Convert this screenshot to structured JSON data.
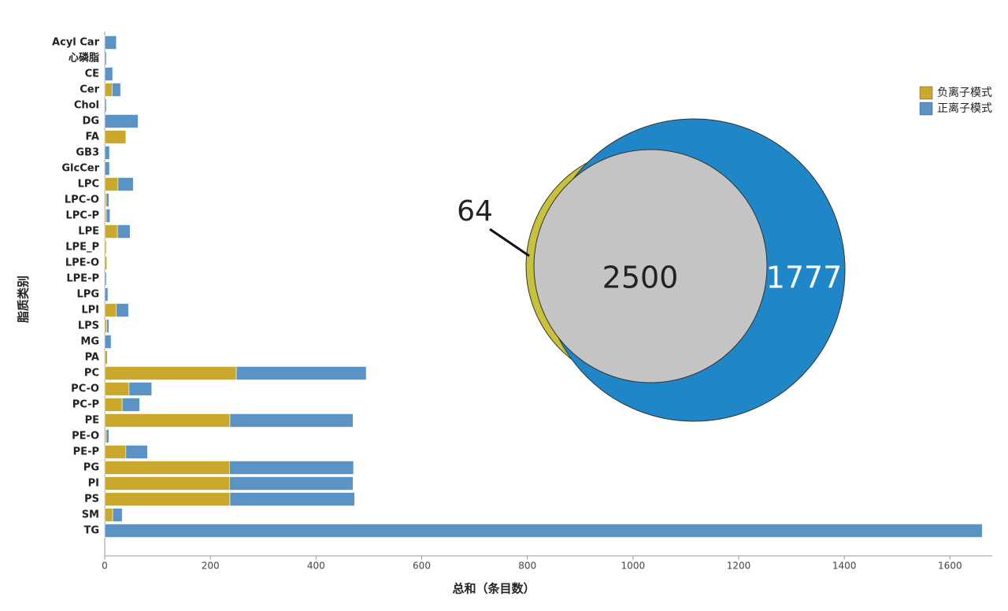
{
  "chart_data": {
    "type": "bar",
    "orientation": "horizontal",
    "stacked": true,
    "x_label": "总和（条目数）",
    "y_label": "脂质类别",
    "categories": [
      "Acyl Car",
      "心磷脂",
      "CE",
      "Cer",
      "Chol",
      "DG",
      "FA",
      "GB3",
      "GlcCer",
      "LPC",
      "LPC-O",
      "LPC-P",
      "LPE",
      "LPE_P",
      "LPE-O",
      "LPE-P",
      "LPG",
      "LPI",
      "LPS",
      "MG",
      "PA",
      "PC",
      "PC-O",
      "PC-P",
      "PE",
      "PE-O",
      "PE-P",
      "PG",
      "PI",
      "PS",
      "SM",
      "TG"
    ],
    "series": [
      {
        "name": "负离子模式",
        "color": "#c9a82c",
        "values": [
          0,
          0,
          0,
          14,
          0,
          0,
          40,
          0,
          0,
          25,
          3,
          3,
          24,
          3,
          4,
          0,
          0,
          22,
          4,
          0,
          5,
          249,
          46,
          33,
          237,
          3,
          40,
          236,
          236,
          237,
          15,
          0
        ]
      },
      {
        "name": "正离子模式",
        "color": "#5b93c4",
        "values": [
          22,
          3,
          15,
          16,
          3,
          63,
          0,
          9,
          9,
          29,
          5,
          7,
          24,
          0,
          0,
          3,
          6,
          23,
          4,
          12,
          0,
          246,
          43,
          33,
          233,
          5,
          41,
          235,
          234,
          236,
          18,
          1661
        ]
      }
    ],
    "xlim": [
      0,
      1680
    ],
    "xticks": [
      0,
      200,
      400,
      600,
      800,
      1000,
      1200,
      1400,
      1600
    ],
    "legend_position": "upper right",
    "venn": {
      "left_only": 64,
      "overlap": 2500,
      "right_only": 1777
    }
  }
}
